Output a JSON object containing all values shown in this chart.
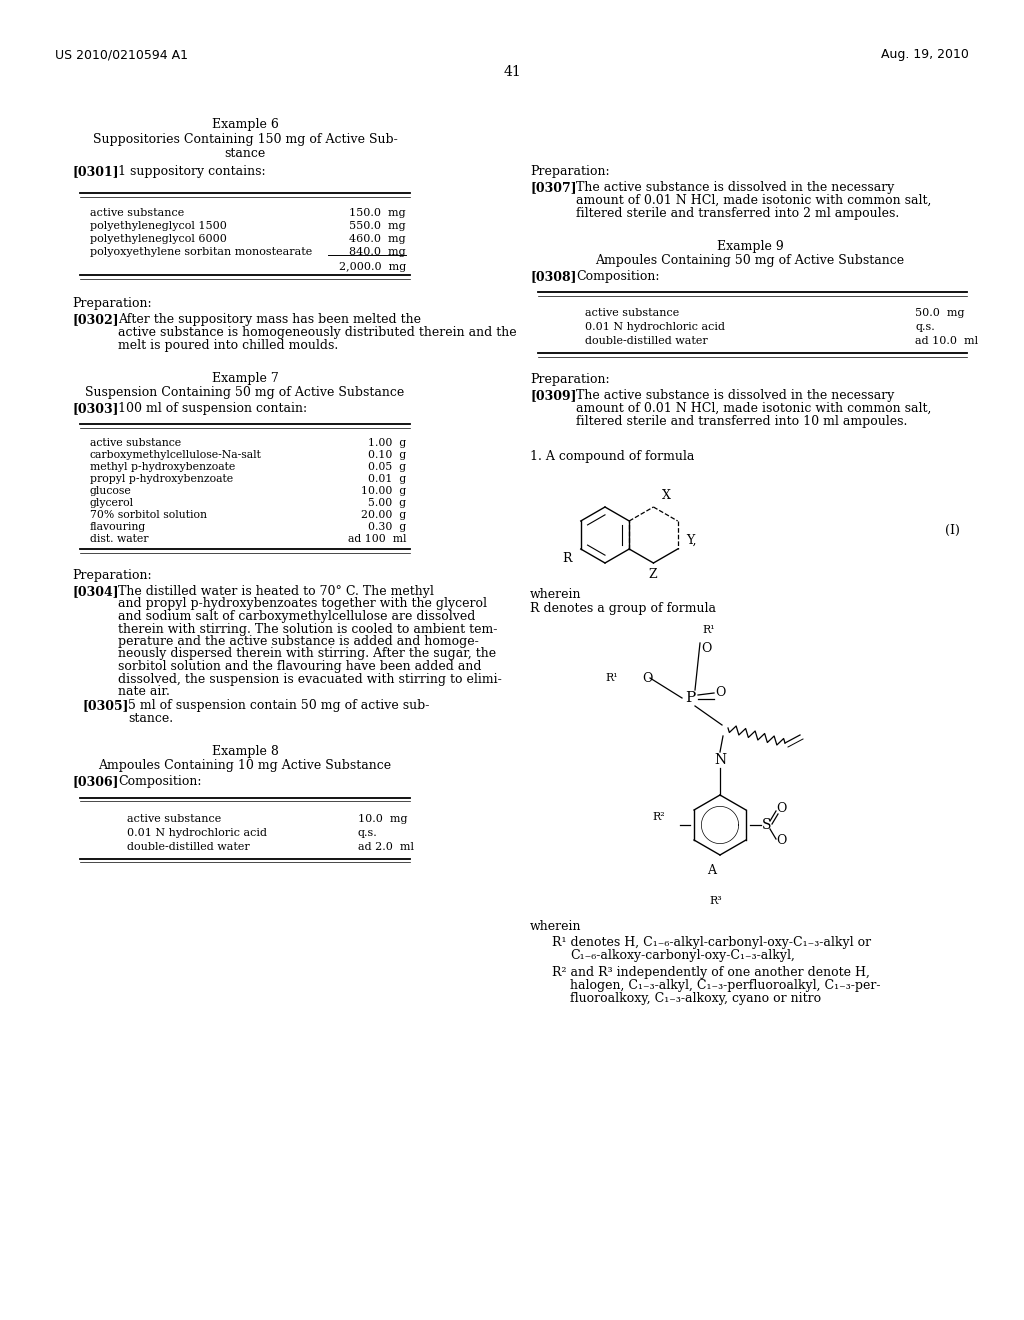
{
  "bg_color": "#ffffff",
  "header_left": "US 2010/0210594 A1",
  "header_right": "Aug. 19, 2010",
  "page_number": "41",
  "left_col": {
    "example6_title": "Example 6",
    "para0301_label": "[0301]",
    "para0301_text": "1 suppository contains:",
    "table1_rows": [
      [
        "active substance",
        "150.0  mg"
      ],
      [
        "polyethyleneglycol 1500",
        "550.0  mg"
      ],
      [
        "polyethyleneglycol 6000",
        "460.0  mg"
      ],
      [
        "polyoxyethylene sorbitan monostearate",
        "840.0  mg"
      ]
    ],
    "table1_total": "2,000.0  mg",
    "prep1_label": "Preparation:",
    "para0302_label": "[0302]",
    "para0302_lines": [
      "After the suppository mass has been melted the",
      "active substance is homogeneously distributed therein and the",
      "melt is poured into chilled moulds."
    ],
    "example7_title": "Example 7",
    "example7_subtitle": "Suspension Containing 50 mg of Active Substance",
    "para0303_label": "[0303]",
    "para0303_text": "100 ml of suspension contain:",
    "table2_rows": [
      [
        "active substance",
        "1.00  g"
      ],
      [
        "carboxymethylcellulose-Na-salt",
        "0.10  g"
      ],
      [
        "methyl p-hydroxybenzoate",
        "0.05  g"
      ],
      [
        "propyl p-hydroxybenzoate",
        "0.01  g"
      ],
      [
        "glucose",
        "10.00  g"
      ],
      [
        "glycerol",
        "5.00  g"
      ],
      [
        "70% sorbitol solution",
        "20.00  g"
      ],
      [
        "flavouring",
        "0.30  g"
      ],
      [
        "dist. water",
        "ad 100  ml"
      ]
    ],
    "prep2_label": "Preparation:",
    "para0304_label": "[0304]",
    "para0304_lines": [
      "The distilled water is heated to 70° C. The methyl",
      "and propyl p-hydroxybenzoates together with the glycerol",
      "and sodium salt of carboxymethylcellulose are dissolved",
      "therein with stirring. The solution is cooled to ambient tem-",
      "perature and the active substance is added and homoge-",
      "neously dispersed therein with stirring. After the sugar, the",
      "sorbitol solution and the flavouring have been added and",
      "dissolved, the suspension is evacuated with stirring to elimi-",
      "nate air."
    ],
    "para0305_label": "[0305]",
    "para0305_lines": [
      "5 ml of suspension contain 50 mg of active sub-",
      "stance."
    ],
    "example8_title": "Example 8",
    "example8_subtitle": "Ampoules Containing 10 mg Active Substance",
    "para0306_label": "[0306]",
    "para0306_text": "Composition:",
    "table3_rows": [
      [
        "active substance",
        "10.0  mg"
      ],
      [
        "0.01 N hydrochloric acid",
        "q.s."
      ],
      [
        "double-distilled water",
        "ad 2.0  ml"
      ]
    ]
  },
  "right_col": {
    "prep3_label": "Preparation:",
    "para0307_label": "[0307]",
    "para0307_lines": [
      "The active substance is dissolved in the necessary",
      "amount of 0.01 N HCl, made isotonic with common salt,",
      "filtered sterile and transferred into 2 ml ampoules."
    ],
    "example9_title": "Example 9",
    "example9_subtitle": "Ampoules Containing 50 mg of Active Substance",
    "para0308_label": "[0308]",
    "para0308_text": "Composition:",
    "table4_rows": [
      [
        "active substance",
        "50.0  mg"
      ],
      [
        "0.01 N hydrochloric acid",
        "q.s."
      ],
      [
        "double-distilled water",
        "ad 10.0  ml"
      ]
    ],
    "prep4_label": "Preparation:",
    "para0309_label": "[0309]",
    "para0309_lines": [
      "The active substance is dissolved in the necessary",
      "amount of 0.01 N HCl, made isotonic with common salt,",
      "filtered sterile and transferred into 10 ml ampoules."
    ],
    "claim1_text": "1. A compound of formula",
    "formula_label": "(I)",
    "wherein1": "wherein",
    "R_denotes": "R denotes a group of formula",
    "wherein2": "wherein",
    "R1_lines": [
      "R¹ denotes H, C₁₋₆-alkyl-carbonyl-oxy-C₁₋₃-alkyl or",
      "C₁₋₆-alkoxy-carbonyl-oxy-C₁₋₃-alkyl,"
    ],
    "R2R3_lines": [
      "R² and R³ independently of one another denote H,",
      "halogen, C₁₋₃-alkyl, C₁₋₃-perfluoroalkyl, C₁₋₃-per-",
      "fluoroalkoxy, C₁₋₃-alkoxy, cyano or nitro"
    ]
  }
}
